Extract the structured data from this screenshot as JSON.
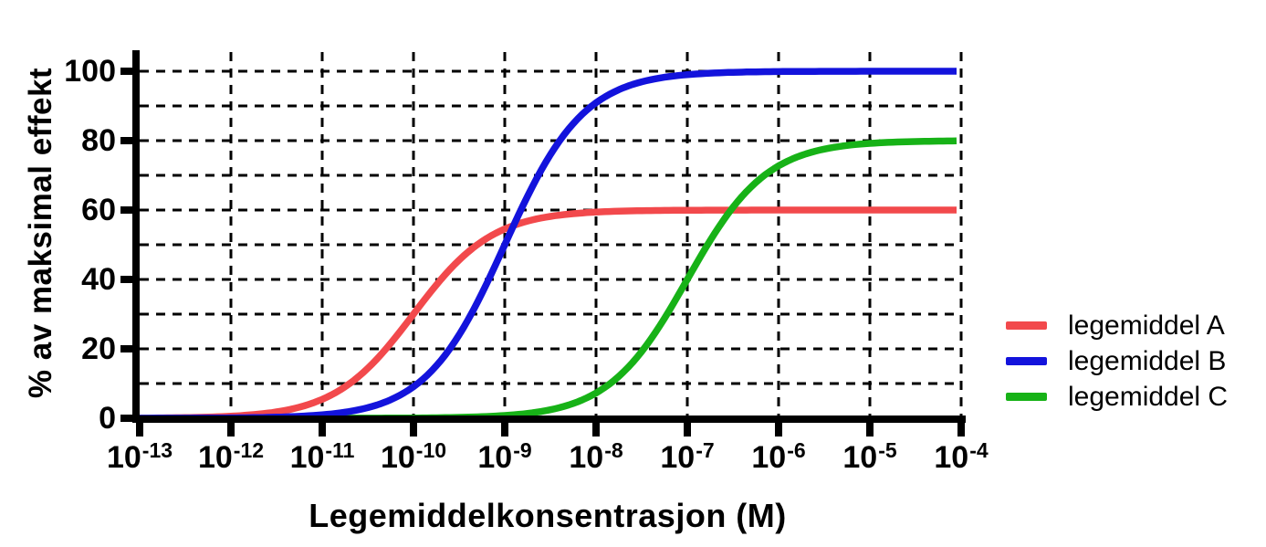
{
  "figure": {
    "background": "#FFFFFF"
  },
  "chart_data": {
    "type": "line",
    "subtype": "dose-response-sigmoid",
    "title": "",
    "xlabel": "Legemiddelkonsentrasjon (M)",
    "ylabel": "% av maksimal effekt",
    "x_scale": "log10",
    "x_tick_base": "10",
    "x_tick_exponents": [
      -13,
      -12,
      -11,
      -10,
      -9,
      -8,
      -7,
      -6,
      -5,
      -4
    ],
    "y_axis_ticks": [
      0,
      20,
      40,
      60,
      80,
      100
    ],
    "y_gridline_step": 10,
    "ylim": [
      0,
      100
    ],
    "grid_style": "dashed",
    "axis_color": "#000000",
    "legend_position": "right-middle",
    "categories_log10_M": [
      -13,
      -12,
      -11,
      -10,
      -9,
      -8,
      -7,
      -6,
      -5,
      -4
    ],
    "series": [
      {
        "name": "legemiddel A",
        "color": "#F2494C",
        "emax_percent": 60,
        "log10_ec50": -10,
        "hill_slope": 1,
        "values_percent": [
          0.1,
          0.6,
          5.5,
          30,
          54.5,
          59.4,
          59.9,
          60,
          60,
          60
        ]
      },
      {
        "name": "legemiddel B",
        "color": "#1313DC",
        "emax_percent": 100,
        "log10_ec50": -9,
        "hill_slope": 1,
        "values_percent": [
          0,
          0.1,
          1,
          9.1,
          50,
          90.9,
          99,
          99.9,
          100,
          100
        ]
      },
      {
        "name": "legemiddel C",
        "color": "#17B217",
        "emax_percent": 80,
        "log10_ec50": -7,
        "hill_slope": 1,
        "values_percent": [
          0,
          0,
          0,
          0.1,
          0.8,
          7.3,
          40,
          72.7,
          78.5,
          79.9
        ]
      }
    ],
    "draw_order": [
      0,
      2,
      1
    ]
  },
  "legend": {
    "items": [
      {
        "label": "legemiddel A",
        "color": "#F2494C"
      },
      {
        "label": "legemiddel B",
        "color": "#1313DC"
      },
      {
        "label": "legemiddel C",
        "color": "#17B217"
      }
    ]
  }
}
